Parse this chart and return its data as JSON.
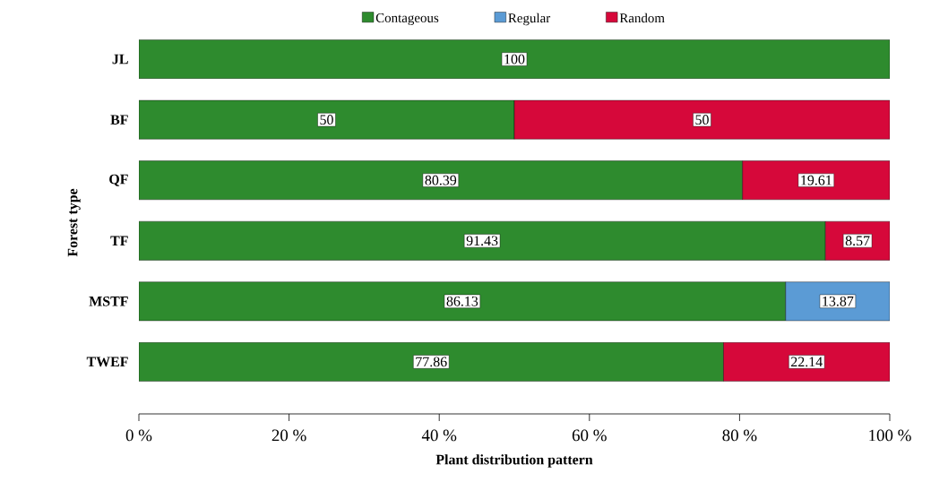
{
  "chart_data": {
    "type": "bar",
    "orientation": "horizontal",
    "stacked": true,
    "xlabel": "Plant distribution pattern",
    "ylabel": "Forest type",
    "categories": [
      "JL",
      "BF",
      "QF",
      "TF",
      "MSTF",
      "TWEF"
    ],
    "series": [
      {
        "name": "Contageous",
        "color": "#2e8b2e",
        "values": [
          100,
          50,
          80.39,
          91.43,
          86.13,
          77.86
        ]
      },
      {
        "name": "Regular",
        "color": "#5b9bd5",
        "values": [
          null,
          null,
          null,
          null,
          13.87,
          null
        ]
      },
      {
        "name": "Random",
        "color": "#d6083a",
        "values": [
          null,
          50,
          19.61,
          8.57,
          null,
          22.14
        ]
      }
    ],
    "xlim": [
      0,
      100
    ],
    "xticks": [
      {
        "value": 0,
        "label": "0 %"
      },
      {
        "value": 20,
        "label": "20 %"
      },
      {
        "value": 40,
        "label": "40 %"
      },
      {
        "value": 60,
        "label": "60 %"
      },
      {
        "value": 80,
        "label": "80 %"
      },
      {
        "value": 100,
        "label": "100 %"
      }
    ],
    "data_labels": true,
    "legend": "top",
    "grid": false
  }
}
